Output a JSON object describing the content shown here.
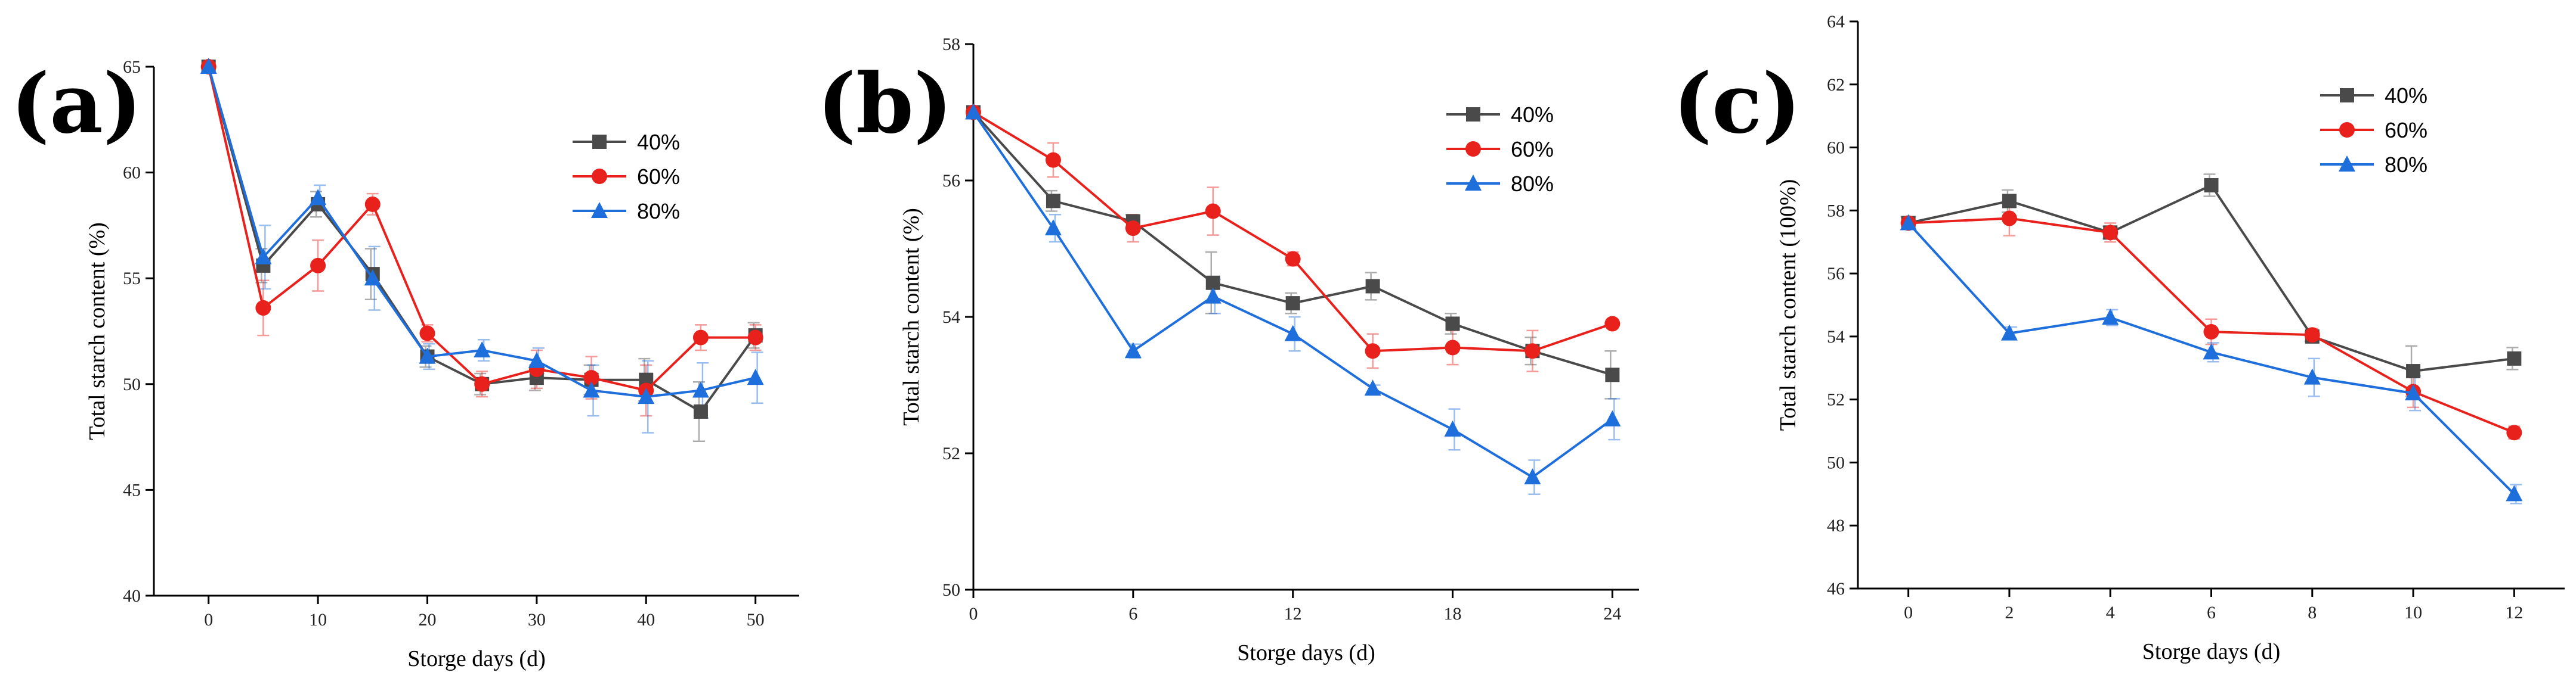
{
  "chart_data": [
    {
      "panel_label": "(a)",
      "type": "line",
      "xlabel": "Storge days (d)",
      "ylabel": "Total starch content (%)",
      "xlim": [
        -5,
        54
      ],
      "ylim": [
        40,
        65
      ],
      "xticks": [
        0,
        10,
        20,
        30,
        40,
        50
      ],
      "yticks": [
        40,
        45,
        50,
        55,
        60,
        65
      ],
      "legend_position": "top-right",
      "series": [
        {
          "name": "40%",
          "color": "#4a4a4a",
          "marker": "square",
          "x": [
            0,
            5,
            10,
            15,
            20,
            25,
            30,
            35,
            40,
            45,
            50
          ],
          "y": [
            65.0,
            55.6,
            58.5,
            55.2,
            51.3,
            50.0,
            50.3,
            50.2,
            50.2,
            48.7,
            52.3
          ],
          "err": [
            0,
            0.8,
            0.6,
            1.2,
            0.5,
            0.5,
            0.6,
            0.7,
            1.0,
            1.4,
            0.6
          ]
        },
        {
          "name": "60%",
          "color": "#e8211c",
          "marker": "circle",
          "x": [
            0,
            5,
            10,
            15,
            20,
            25,
            30,
            35,
            40,
            45,
            50
          ],
          "y": [
            65.0,
            53.6,
            55.6,
            58.5,
            52.4,
            50.0,
            50.7,
            50.3,
            49.7,
            52.2,
            52.2
          ],
          "err": [
            0,
            1.3,
            1.2,
            0.5,
            0.4,
            0.6,
            0.9,
            1.0,
            1.2,
            0.6,
            0.6
          ]
        },
        {
          "name": "80%",
          "color": "#1e6fdc",
          "marker": "triangle",
          "x": [
            0,
            5,
            10,
            15,
            20,
            25,
            30,
            35,
            40,
            45,
            50
          ],
          "y": [
            65.0,
            56.0,
            58.8,
            55.0,
            51.3,
            51.6,
            51.1,
            49.7,
            49.4,
            49.7,
            50.3
          ],
          "err": [
            0,
            1.5,
            0.6,
            1.5,
            0.6,
            0.5,
            0.6,
            1.2,
            1.7,
            1.3,
            1.2
          ]
        }
      ]
    },
    {
      "panel_label": "(b)",
      "type": "line",
      "xlabel": "Storge days (d)",
      "ylabel": "Total starch content (%)",
      "xlim": [
        0,
        25
      ],
      "ylim": [
        50,
        58
      ],
      "xticks": [
        0,
        6,
        12,
        18,
        24
      ],
      "yticks": [
        50,
        52,
        54,
        56,
        58
      ],
      "legend_position": "top-right",
      "series": [
        {
          "name": "40%",
          "color": "#4a4a4a",
          "marker": "square",
          "x": [
            0,
            3,
            6,
            9,
            12,
            15,
            18,
            21,
            24
          ],
          "y": [
            57.0,
            55.7,
            55.4,
            54.5,
            54.2,
            54.45,
            53.9,
            53.5,
            53.15
          ],
          "err": [
            0,
            0.15,
            0.1,
            0.45,
            0.15,
            0.2,
            0.15,
            0.2,
            0.35
          ]
        },
        {
          "name": "60%",
          "color": "#e8211c",
          "marker": "circle",
          "x": [
            0,
            3,
            6,
            9,
            12,
            15,
            18,
            21,
            24
          ],
          "y": [
            57.0,
            56.3,
            55.3,
            55.55,
            54.85,
            53.5,
            53.55,
            53.5,
            53.9
          ],
          "err": [
            0,
            0.25,
            0.2,
            0.35,
            0.1,
            0.25,
            0.25,
            0.3,
            0.05
          ]
        },
        {
          "name": "80%",
          "color": "#1e6fdc",
          "marker": "triangle",
          "x": [
            0,
            3,
            6,
            9,
            12,
            15,
            18,
            21,
            24
          ],
          "y": [
            57.0,
            55.3,
            53.5,
            54.3,
            53.75,
            52.95,
            52.35,
            51.65,
            52.5
          ],
          "err": [
            0,
            0.2,
            0.1,
            0.25,
            0.25,
            0.05,
            0.3,
            0.25,
            0.3
          ]
        }
      ]
    },
    {
      "panel_label": "(c)",
      "type": "line",
      "xlabel": "Storge days (d)",
      "ylabel": "Total starch content (100%)",
      "xlim": [
        -1,
        13
      ],
      "ylim": [
        46,
        64
      ],
      "xticks": [
        0,
        2,
        4,
        6,
        8,
        10,
        12
      ],
      "yticks": [
        46,
        48,
        50,
        52,
        54,
        56,
        58,
        60,
        62,
        64
      ],
      "legend_position": "top-right",
      "series": [
        {
          "name": "40%",
          "color": "#4a4a4a",
          "marker": "square",
          "x": [
            0,
            2,
            4,
            6,
            8,
            10,
            12
          ],
          "y": [
            57.6,
            58.3,
            57.3,
            58.8,
            54.0,
            52.9,
            53.3
          ],
          "err": [
            0.2,
            0.35,
            0.2,
            0.35,
            0.15,
            0.8,
            0.35
          ]
        },
        {
          "name": "60%",
          "color": "#e8211c",
          "marker": "circle",
          "x": [
            0,
            2,
            4,
            6,
            8,
            10,
            12
          ],
          "y": [
            57.6,
            57.75,
            57.3,
            54.15,
            54.05,
            52.25,
            50.95
          ],
          "err": [
            0.2,
            0.55,
            0.3,
            0.4,
            0.2,
            0.5,
            0.2
          ]
        },
        {
          "name": "80%",
          "color": "#1e6fdc",
          "marker": "triangle",
          "x": [
            0,
            2,
            4,
            6,
            8,
            10,
            12
          ],
          "y": [
            57.6,
            54.1,
            54.6,
            53.5,
            52.7,
            52.2,
            49.0
          ],
          "err": [
            0.2,
            0.2,
            0.25,
            0.3,
            0.6,
            0.55,
            0.3
          ]
        }
      ]
    }
  ]
}
